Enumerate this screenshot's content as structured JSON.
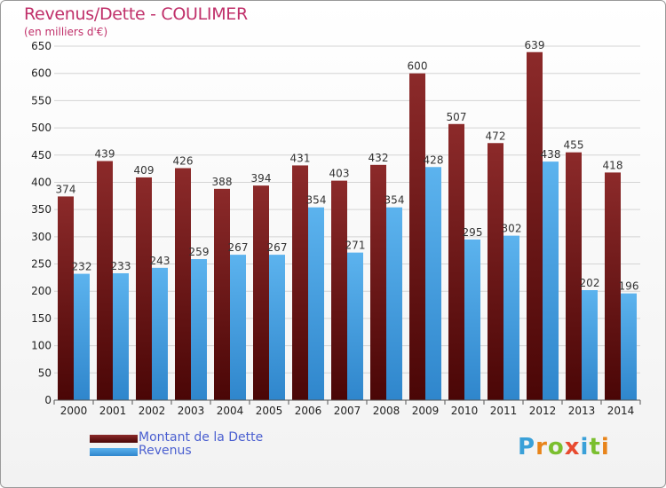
{
  "title": "Revenus/Dette - COULIMER",
  "subtitle": "(en milliers d'€)",
  "logo": {
    "letters": [
      "P",
      "r",
      "o",
      "x",
      "i",
      "t",
      "i"
    ],
    "colors": [
      "#3aa0d8",
      "#e8841a",
      "#7bbf2f",
      "#e84a2f",
      "#3aa0d8",
      "#7bbf2f",
      "#e8841a"
    ]
  },
  "chart_data": {
    "type": "bar",
    "categories": [
      "2000",
      "2001",
      "2002",
      "2003",
      "2004",
      "2005",
      "2006",
      "2007",
      "2008",
      "2009",
      "2010",
      "2011",
      "2012",
      "2013",
      "2014"
    ],
    "series": [
      {
        "name": "Montant de la Dette",
        "values": [
          374,
          439,
          409,
          426,
          388,
          394,
          431,
          403,
          432,
          600,
          507,
          472,
          639,
          455,
          418
        ],
        "color": "#7a1f1f"
      },
      {
        "name": "Revenus",
        "values": [
          232,
          233,
          243,
          259,
          267,
          267,
          354,
          271,
          354,
          428,
          295,
          302,
          438,
          202,
          196
        ],
        "color": "#4aa3e6"
      }
    ],
    "ylim": [
      0,
      650
    ],
    "ytick_step": 50,
    "grid": true,
    "legend": "bottom-left"
  }
}
